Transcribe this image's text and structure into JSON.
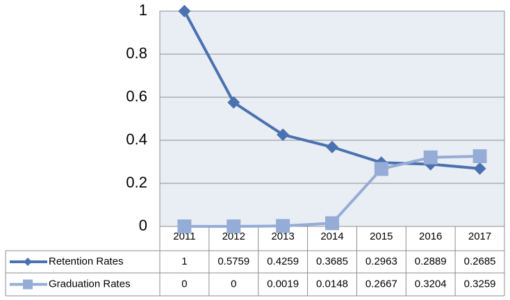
{
  "chart_data": {
    "type": "line",
    "categories": [
      "2011",
      "2012",
      "2013",
      "2014",
      "2015",
      "2016",
      "2017"
    ],
    "series": [
      {
        "name": "Retention Rates",
        "color": "#4a72b0",
        "marker": "diamond",
        "values": [
          1,
          0.5759,
          0.4259,
          0.3685,
          0.2963,
          0.2889,
          0.2685
        ]
      },
      {
        "name": "Graduation Rates",
        "color": "#95acd6",
        "marker": "square",
        "values": [
          0,
          0,
          0.0019,
          0.0148,
          0.2667,
          0.3204,
          0.3259
        ]
      }
    ],
    "ylim": [
      0,
      1
    ],
    "yticks": [
      0,
      0.2,
      0.4,
      0.6,
      0.8,
      1
    ],
    "grid": true,
    "data_table": true
  }
}
